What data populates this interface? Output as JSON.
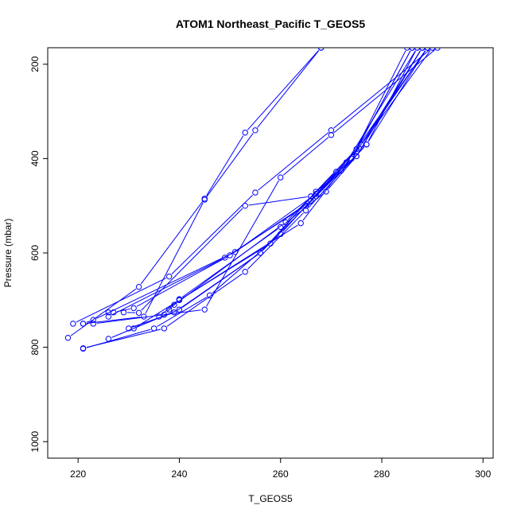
{
  "chart_data": {
    "type": "line",
    "title": "ATOM1 Northeast_Pacific T_GEOS5",
    "xlabel": "T_GEOS5",
    "ylabel": "Pressure (mbar)",
    "xlim": [
      214,
      302
    ],
    "ylim": [
      1035,
      165
    ],
    "y_axis_reversed": true,
    "x_ticks": [
      "220",
      "240",
      "260",
      "280",
      "300"
    ],
    "y_ticks": [
      "200",
      "400",
      "600",
      "800",
      "1000"
    ],
    "grid": false,
    "legend": "none",
    "color": "#0000ff",
    "marker": "open-circle",
    "series": [
      {
        "points": [
          [
            218,
            780
          ],
          [
            232,
            672
          ],
          [
            245,
            485
          ],
          [
            253,
            345
          ],
          [
            268,
            165
          ]
        ]
      },
      {
        "points": [
          [
            221,
            750
          ],
          [
            233,
            735
          ],
          [
            245,
            487
          ],
          [
            255,
            340
          ],
          [
            268,
            165
          ]
        ]
      },
      {
        "points": [
          [
            223,
            750
          ],
          [
            245,
            720
          ],
          [
            260,
            440
          ],
          [
            270,
            350
          ],
          [
            291,
            165
          ]
        ]
      },
      {
        "points": [
          [
            219,
            750
          ],
          [
            238,
            650
          ],
          [
            255,
            472
          ],
          [
            270,
            340
          ],
          [
            290,
            165
          ]
        ]
      },
      {
        "points": [
          [
            221,
            803
          ],
          [
            235,
            760
          ],
          [
            246,
            690
          ],
          [
            260,
            560
          ],
          [
            276,
            370
          ],
          [
            288,
            165
          ]
        ]
      },
      {
        "points": [
          [
            221,
            802
          ],
          [
            237,
            760
          ],
          [
            253,
            640
          ],
          [
            265,
            510
          ],
          [
            277,
            370
          ],
          [
            287,
            165
          ]
        ]
      },
      {
        "points": [
          [
            226,
            782
          ],
          [
            240,
            720
          ],
          [
            256,
            600
          ],
          [
            267,
            470
          ],
          [
            275,
            380
          ],
          [
            286,
            165
          ]
        ]
      },
      {
        "points": [
          [
            230,
            760
          ],
          [
            239,
            726
          ],
          [
            256,
            600
          ],
          [
            267,
            480
          ],
          [
            274,
            400
          ],
          [
            285,
            165
          ]
        ]
      },
      {
        "points": [
          [
            231,
            760
          ],
          [
            240,
            700
          ],
          [
            258,
            580
          ],
          [
            266,
            480
          ],
          [
            272,
            425
          ],
          [
            289,
            165
          ]
        ]
      },
      {
        "points": [
          [
            236,
            735
          ],
          [
            240,
            698
          ],
          [
            260,
            545
          ],
          [
            269,
            470
          ],
          [
            275,
            395
          ],
          [
            288,
            165
          ]
        ]
      },
      {
        "points": [
          [
            237,
            731
          ],
          [
            239,
            710
          ],
          [
            261,
            535
          ],
          [
            271,
            428
          ],
          [
            276,
            370
          ],
          [
            290,
            165
          ]
        ]
      },
      {
        "points": [
          [
            238,
            720
          ],
          [
            240,
            700
          ],
          [
            264,
            537
          ],
          [
            272,
            425
          ],
          [
            277,
            370
          ],
          [
            289,
            165
          ]
        ]
      },
      {
        "points": [
          [
            229,
            726
          ],
          [
            232,
            727
          ],
          [
            253,
            500
          ],
          [
            266,
            480
          ],
          [
            273,
            408
          ],
          [
            287,
            165
          ]
        ]
      },
      {
        "points": [
          [
            226,
            726
          ],
          [
            226,
            735
          ],
          [
            249,
            610
          ],
          [
            265,
            500
          ],
          [
            274,
            400
          ],
          [
            286,
            165
          ]
        ]
      },
      {
        "points": [
          [
            227,
            726
          ],
          [
            231,
            717
          ],
          [
            250,
            605
          ],
          [
            266,
            490
          ],
          [
            275,
            395
          ],
          [
            288,
            165
          ]
        ]
      },
      {
        "points": [
          [
            221,
            750
          ],
          [
            223,
            742
          ],
          [
            251,
            598
          ],
          [
            267,
            475
          ],
          [
            274,
            400
          ],
          [
            289,
            165
          ]
        ]
      }
    ]
  }
}
